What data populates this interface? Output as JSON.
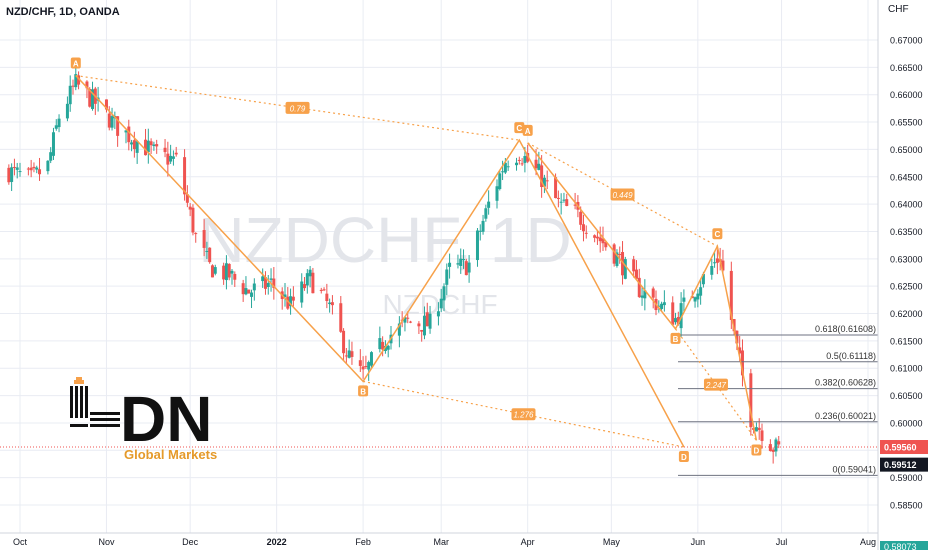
{
  "header": {
    "symbol_line": "NZD/CHF, 1D, OANDA",
    "currency": "CHF"
  },
  "watermark": {
    "big": "NZDCHF, 1D",
    "small": "NZDCHF"
  },
  "logo": {
    "letters": "DN",
    "sub": "Global Markets"
  },
  "colors": {
    "up": "#26a69a",
    "down": "#ef5350",
    "pattern": "#f7a14a",
    "grid": "#e9ecf3",
    "red_line": "#ef5350",
    "dark_label": "#131722"
  },
  "chart_data": {
    "type": "candlestick",
    "title": "NZD/CHF, 1D, OANDA",
    "ylabel": "CHF",
    "ylim": [
      0.5857,
      0.6725
    ],
    "y_ticks": [
      "0.67000",
      "0.66500",
      "0.66000",
      "0.65500",
      "0.65000",
      "0.64500",
      "0.64000",
      "0.63500",
      "0.63000",
      "0.62500",
      "0.62000",
      "0.61500",
      "0.61000",
      "0.60500",
      "0.60000",
      "0.59500",
      "0.59000",
      "0.58500"
    ],
    "x_ticks": [
      "Oct",
      "Nov",
      "Dec",
      "2022",
      "Feb",
      "Mar",
      "Apr",
      "May",
      "Jun",
      "Jul",
      "Aug"
    ],
    "price_labels": [
      "0.59560",
      "0.59512"
    ],
    "bottom_label": "0.58073",
    "pattern1": {
      "points": [
        {
          "label": "A",
          "date": "2021-10-21",
          "price": 0.6635
        },
        {
          "label": "B",
          "date": "2022-02-01",
          "price": 0.6076
        },
        {
          "label": "C",
          "date": "2022-03-29",
          "price": 0.6517
        },
        {
          "label": "D",
          "date": "2022-05-27",
          "price": 0.5956
        }
      ],
      "ratios": [
        "0.79",
        "1.276"
      ]
    },
    "pattern2": {
      "points": [
        {
          "label": "A",
          "date": "2022-04-01",
          "price": 0.6512
        },
        {
          "label": "B",
          "date": "2022-05-24",
          "price": 0.6172
        },
        {
          "label": "C",
          "date": "2022-06-08",
          "price": 0.6323
        },
        {
          "label": "D",
          "date": "2022-06-22",
          "price": 0.5968
        }
      ],
      "ratios": [
        "0.449",
        "2.247"
      ]
    },
    "fib_levels": [
      {
        "label": "0.618(0.61608)",
        "value": 0.61608
      },
      {
        "label": "0.5(0.61118)",
        "value": 0.61118
      },
      {
        "label": "0.382(0.60628)",
        "value": 0.60628
      },
      {
        "label": "0.236(0.60021)",
        "value": 0.60021
      },
      {
        "label": "0(0.59041)",
        "value": 0.59041
      }
    ],
    "current_price": 0.5956,
    "candles_close_path": [
      [
        "2021-09-27",
        0.646
      ],
      [
        "2021-10-05",
        0.6445
      ],
      [
        "2021-10-11",
        0.647
      ],
      [
        "2021-10-15",
        0.656
      ],
      [
        "2021-10-21",
        0.662
      ],
      [
        "2021-10-28",
        0.6585
      ],
      [
        "2021-11-05",
        0.654
      ],
      [
        "2021-11-12",
        0.6515
      ],
      [
        "2021-11-19",
        0.649
      ],
      [
        "2021-11-26",
        0.648
      ],
      [
        "2021-12-03",
        0.634
      ],
      [
        "2021-12-08",
        0.6285
      ],
      [
        "2021-12-15",
        0.627
      ],
      [
        "2021-12-22",
        0.624
      ],
      [
        "2021-12-30",
        0.6255
      ],
      [
        "2022-01-06",
        0.6215
      ],
      [
        "2022-01-13",
        0.6265
      ],
      [
        "2022-01-20",
        0.621
      ],
      [
        "2022-01-27",
        0.612
      ],
      [
        "2022-02-01",
        0.6085
      ],
      [
        "2022-02-09",
        0.6155
      ],
      [
        "2022-02-17",
        0.6185
      ],
      [
        "2022-02-25",
        0.618
      ],
      [
        "2022-03-04",
        0.628
      ],
      [
        "2022-03-11",
        0.629
      ],
      [
        "2022-03-18",
        0.64
      ],
      [
        "2022-03-24",
        0.648
      ],
      [
        "2022-03-29",
        0.6495
      ],
      [
        "2022-04-05",
        0.6455
      ],
      [
        "2022-04-12",
        0.64
      ],
      [
        "2022-04-19",
        0.638
      ],
      [
        "2022-04-26",
        0.634
      ],
      [
        "2022-05-03",
        0.6305
      ],
      [
        "2022-05-10",
        0.625
      ],
      [
        "2022-05-17",
        0.622
      ],
      [
        "2022-05-24",
        0.619
      ],
      [
        "2022-05-31",
        0.6245
      ],
      [
        "2022-06-06",
        0.6285
      ],
      [
        "2022-06-09",
        0.6305
      ],
      [
        "2022-06-14",
        0.616
      ],
      [
        "2022-06-20",
        0.601
      ],
      [
        "2022-06-24",
        0.5985
      ],
      [
        "2022-06-28",
        0.5956
      ],
      [
        "2022-07-01",
        0.5951
      ]
    ]
  }
}
